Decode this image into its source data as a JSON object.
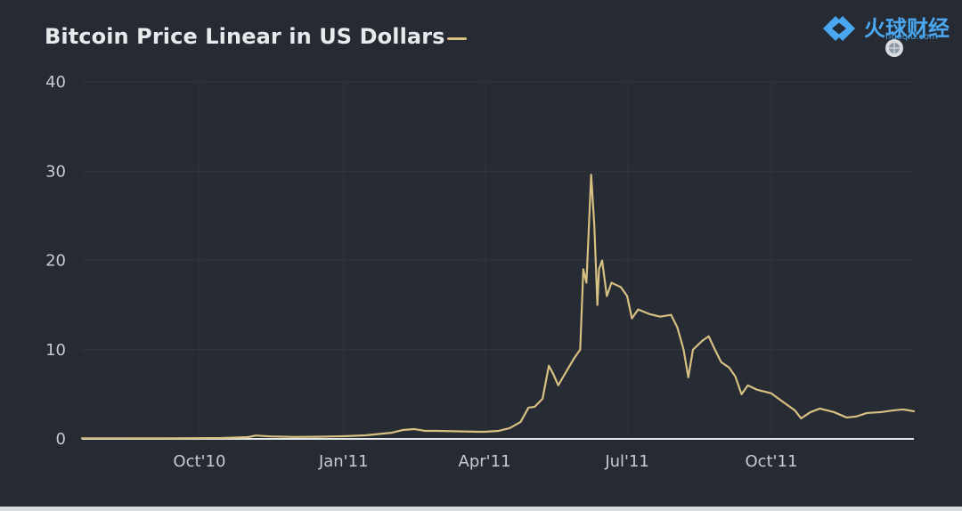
{
  "chart_data": {
    "type": "line",
    "title": "Bitcoin Price Linear in US Dollars",
    "xlabel": "",
    "ylabel": "",
    "xlim": [
      "2010-07-18",
      "2011-12-31"
    ],
    "ylim": [
      0,
      40
    ],
    "yticks": [
      0,
      10,
      20,
      30,
      40
    ],
    "xticks": [
      {
        "date": "2010-10-01",
        "label": "Oct'10"
      },
      {
        "date": "2011-01-01",
        "label": "Jan'11"
      },
      {
        "date": "2011-04-01",
        "label": "Apr'11"
      },
      {
        "date": "2011-07-01",
        "label": "Jul'11"
      },
      {
        "date": "2011-10-01",
        "label": "Oct'11"
      }
    ],
    "grid": true,
    "legend": "top-left",
    "series": [
      {
        "name": "",
        "color": "#d8bf82",
        "points": [
          [
            "2010-07-18",
            0.07
          ],
          [
            "2010-08-15",
            0.07
          ],
          [
            "2010-09-15",
            0.06
          ],
          [
            "2010-10-15",
            0.1
          ],
          [
            "2010-11-01",
            0.2
          ],
          [
            "2010-11-06",
            0.38
          ],
          [
            "2010-11-15",
            0.28
          ],
          [
            "2010-12-01",
            0.22
          ],
          [
            "2010-12-15",
            0.24
          ],
          [
            "2011-01-01",
            0.3
          ],
          [
            "2011-01-15",
            0.4
          ],
          [
            "2011-02-01",
            0.7
          ],
          [
            "2011-02-08",
            1.0
          ],
          [
            "2011-02-15",
            1.1
          ],
          [
            "2011-02-22",
            0.9
          ],
          [
            "2011-03-01",
            0.9
          ],
          [
            "2011-03-15",
            0.85
          ],
          [
            "2011-03-28",
            0.8
          ],
          [
            "2011-04-01",
            0.8
          ],
          [
            "2011-04-10",
            0.9
          ],
          [
            "2011-04-17",
            1.2
          ],
          [
            "2011-04-24",
            1.9
          ],
          [
            "2011-04-29",
            3.5
          ],
          [
            "2011-05-03",
            3.6
          ],
          [
            "2011-05-08",
            4.5
          ],
          [
            "2011-05-12",
            8.2
          ],
          [
            "2011-05-15",
            7.2
          ],
          [
            "2011-05-18",
            6.0
          ],
          [
            "2011-05-23",
            7.5
          ],
          [
            "2011-05-28",
            9.0
          ],
          [
            "2011-06-01",
            10.0
          ],
          [
            "2011-06-03",
            19.0
          ],
          [
            "2011-06-05",
            17.5
          ],
          [
            "2011-06-08",
            29.6
          ],
          [
            "2011-06-10",
            24.0
          ],
          [
            "2011-06-12",
            15.0
          ],
          [
            "2011-06-13",
            19.0
          ],
          [
            "2011-06-15",
            20.0
          ],
          [
            "2011-06-18",
            16.0
          ],
          [
            "2011-06-21",
            17.5
          ],
          [
            "2011-06-27",
            17.0
          ],
          [
            "2011-07-01",
            16.0
          ],
          [
            "2011-07-04",
            13.5
          ],
          [
            "2011-07-08",
            14.5
          ],
          [
            "2011-07-15",
            14.0
          ],
          [
            "2011-07-22",
            13.7
          ],
          [
            "2011-07-29",
            13.9
          ],
          [
            "2011-08-02",
            12.5
          ],
          [
            "2011-08-06",
            10.0
          ],
          [
            "2011-08-09",
            6.9
          ],
          [
            "2011-08-12",
            10.0
          ],
          [
            "2011-08-18",
            11.0
          ],
          [
            "2011-08-22",
            11.5
          ],
          [
            "2011-08-26",
            10.0
          ],
          [
            "2011-08-30",
            8.6
          ],
          [
            "2011-09-04",
            8.0
          ],
          [
            "2011-09-08",
            7.0
          ],
          [
            "2011-09-12",
            5.0
          ],
          [
            "2011-09-16",
            6.0
          ],
          [
            "2011-09-22",
            5.5
          ],
          [
            "2011-10-01",
            5.1
          ],
          [
            "2011-10-08",
            4.2
          ],
          [
            "2011-10-16",
            3.2
          ],
          [
            "2011-10-20",
            2.3
          ],
          [
            "2011-10-26",
            3.0
          ],
          [
            "2011-11-01",
            3.4
          ],
          [
            "2011-11-10",
            3.0
          ],
          [
            "2011-11-18",
            2.4
          ],
          [
            "2011-11-24",
            2.5
          ],
          [
            "2011-12-01",
            2.9
          ],
          [
            "2011-12-10",
            3.0
          ],
          [
            "2011-12-18",
            3.2
          ],
          [
            "2011-12-24",
            3.3
          ],
          [
            "2011-12-31",
            3.1
          ]
        ]
      }
    ]
  },
  "watermark": {
    "brand_name": "火球财经",
    "url": "huoqiu.com",
    "icon": "huoqiu-logo-icon"
  }
}
